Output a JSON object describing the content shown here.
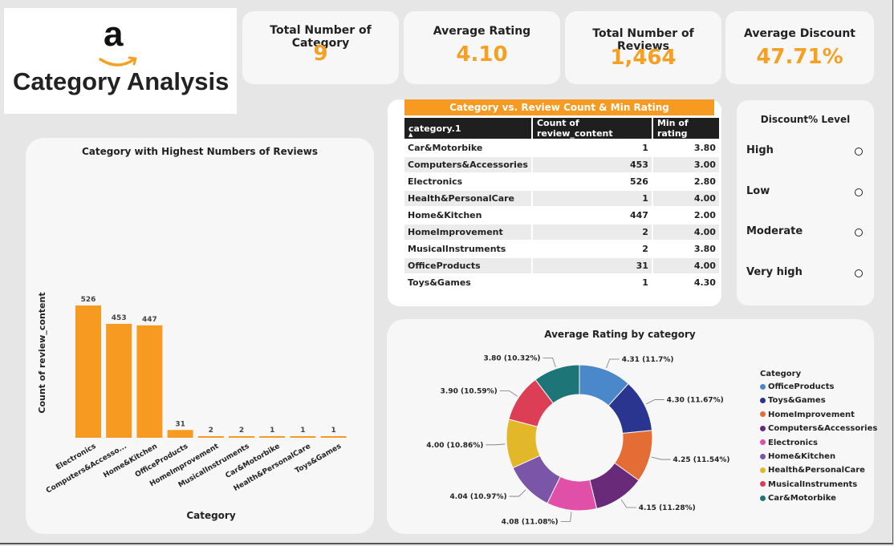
{
  "header": {
    "title": "Category Analysis",
    "logo_letter": "a"
  },
  "kpis": [
    {
      "label": "Total Number of Category",
      "value": "9"
    },
    {
      "label": "Average Rating",
      "value": "4.10"
    },
    {
      "label": "Total Number of Reviews",
      "value": "1,464"
    },
    {
      "label": "Average Discount",
      "value": "47.71%"
    }
  ],
  "table": {
    "title": "Category vs. Review Count & Min Rating",
    "columns": [
      "category.1",
      "Count of review_content",
      "Min of rating"
    ],
    "rows": [
      [
        "Car&Motorbike",
        "1",
        "3.80"
      ],
      [
        "Computers&Accessories",
        "453",
        "3.00"
      ],
      [
        "Electronics",
        "526",
        "2.80"
      ],
      [
        "Health&PersonalCare",
        "1",
        "4.00"
      ],
      [
        "Home&Kitchen",
        "447",
        "2.00"
      ],
      [
        "HomeImprovement",
        "2",
        "4.00"
      ],
      [
        "MusicalInstruments",
        "2",
        "3.80"
      ],
      [
        "OfficeProducts",
        "31",
        "4.00"
      ],
      [
        "Toys&Games",
        "1",
        "4.30"
      ]
    ]
  },
  "slicer": {
    "title": "Discount% Level",
    "options": [
      "High",
      "Low",
      "Moderate",
      "Very high"
    ]
  },
  "colors": {
    "accent": "#f4a023",
    "dark_header": "#1f1f1f"
  },
  "chart_data": [
    {
      "type": "bar",
      "title": "Category with Highest Numbers of Reviews",
      "xlabel": "Category",
      "ylabel": "Count of review_content",
      "categories": [
        "Electronics",
        "Computers&Accesso...",
        "Home&Kitchen",
        "OfficeProducts",
        "HomeImprovement",
        "MusicalInstruments",
        "Car&Motorbike",
        "Health&PersonalCare",
        "Toys&Games"
      ],
      "values": [
        526,
        453,
        447,
        31,
        2,
        2,
        1,
        1,
        1
      ],
      "data_labels": [
        "526",
        "453",
        "447",
        "31",
        "2",
        "2",
        "1",
        "1",
        "1"
      ],
      "ylim": [
        0,
        560
      ],
      "color": "#f69a21",
      "grid": false
    },
    {
      "type": "pie",
      "style": "donut",
      "title": "Average Rating by category",
      "legend_title": "Category",
      "legend_position": "right",
      "categories": [
        "OfficeProducts",
        "Toys&Games",
        "HomeImprovement",
        "Computers&Accessories",
        "Electronics",
        "Home&Kitchen",
        "Health&PersonalCare",
        "MusicalInstruments",
        "Car&Motorbike"
      ],
      "values": [
        4.31,
        4.3,
        4.25,
        4.15,
        4.08,
        4.04,
        4.0,
        3.9,
        3.8
      ],
      "percentages": [
        11.7,
        11.67,
        11.54,
        11.28,
        11.08,
        10.97,
        10.86,
        10.59,
        10.32
      ],
      "data_labels": [
        "4.31 (11.7%)",
        "4.30 (11.67%)",
        "4.25 (11.54%)",
        "4.15 (11.28%)",
        "4.08 (11.08%)",
        "4.04 (10.97%)",
        "4.00 (10.86%)",
        "3.90 (10.59%)",
        "3.80 (10.32%)"
      ],
      "colors": [
        "#4a88c9",
        "#2a3590",
        "#e46c35",
        "#6a2a7a",
        "#e04fa8",
        "#7b55a8",
        "#e2b72a",
        "#dc3f55",
        "#1e7577"
      ]
    }
  ]
}
